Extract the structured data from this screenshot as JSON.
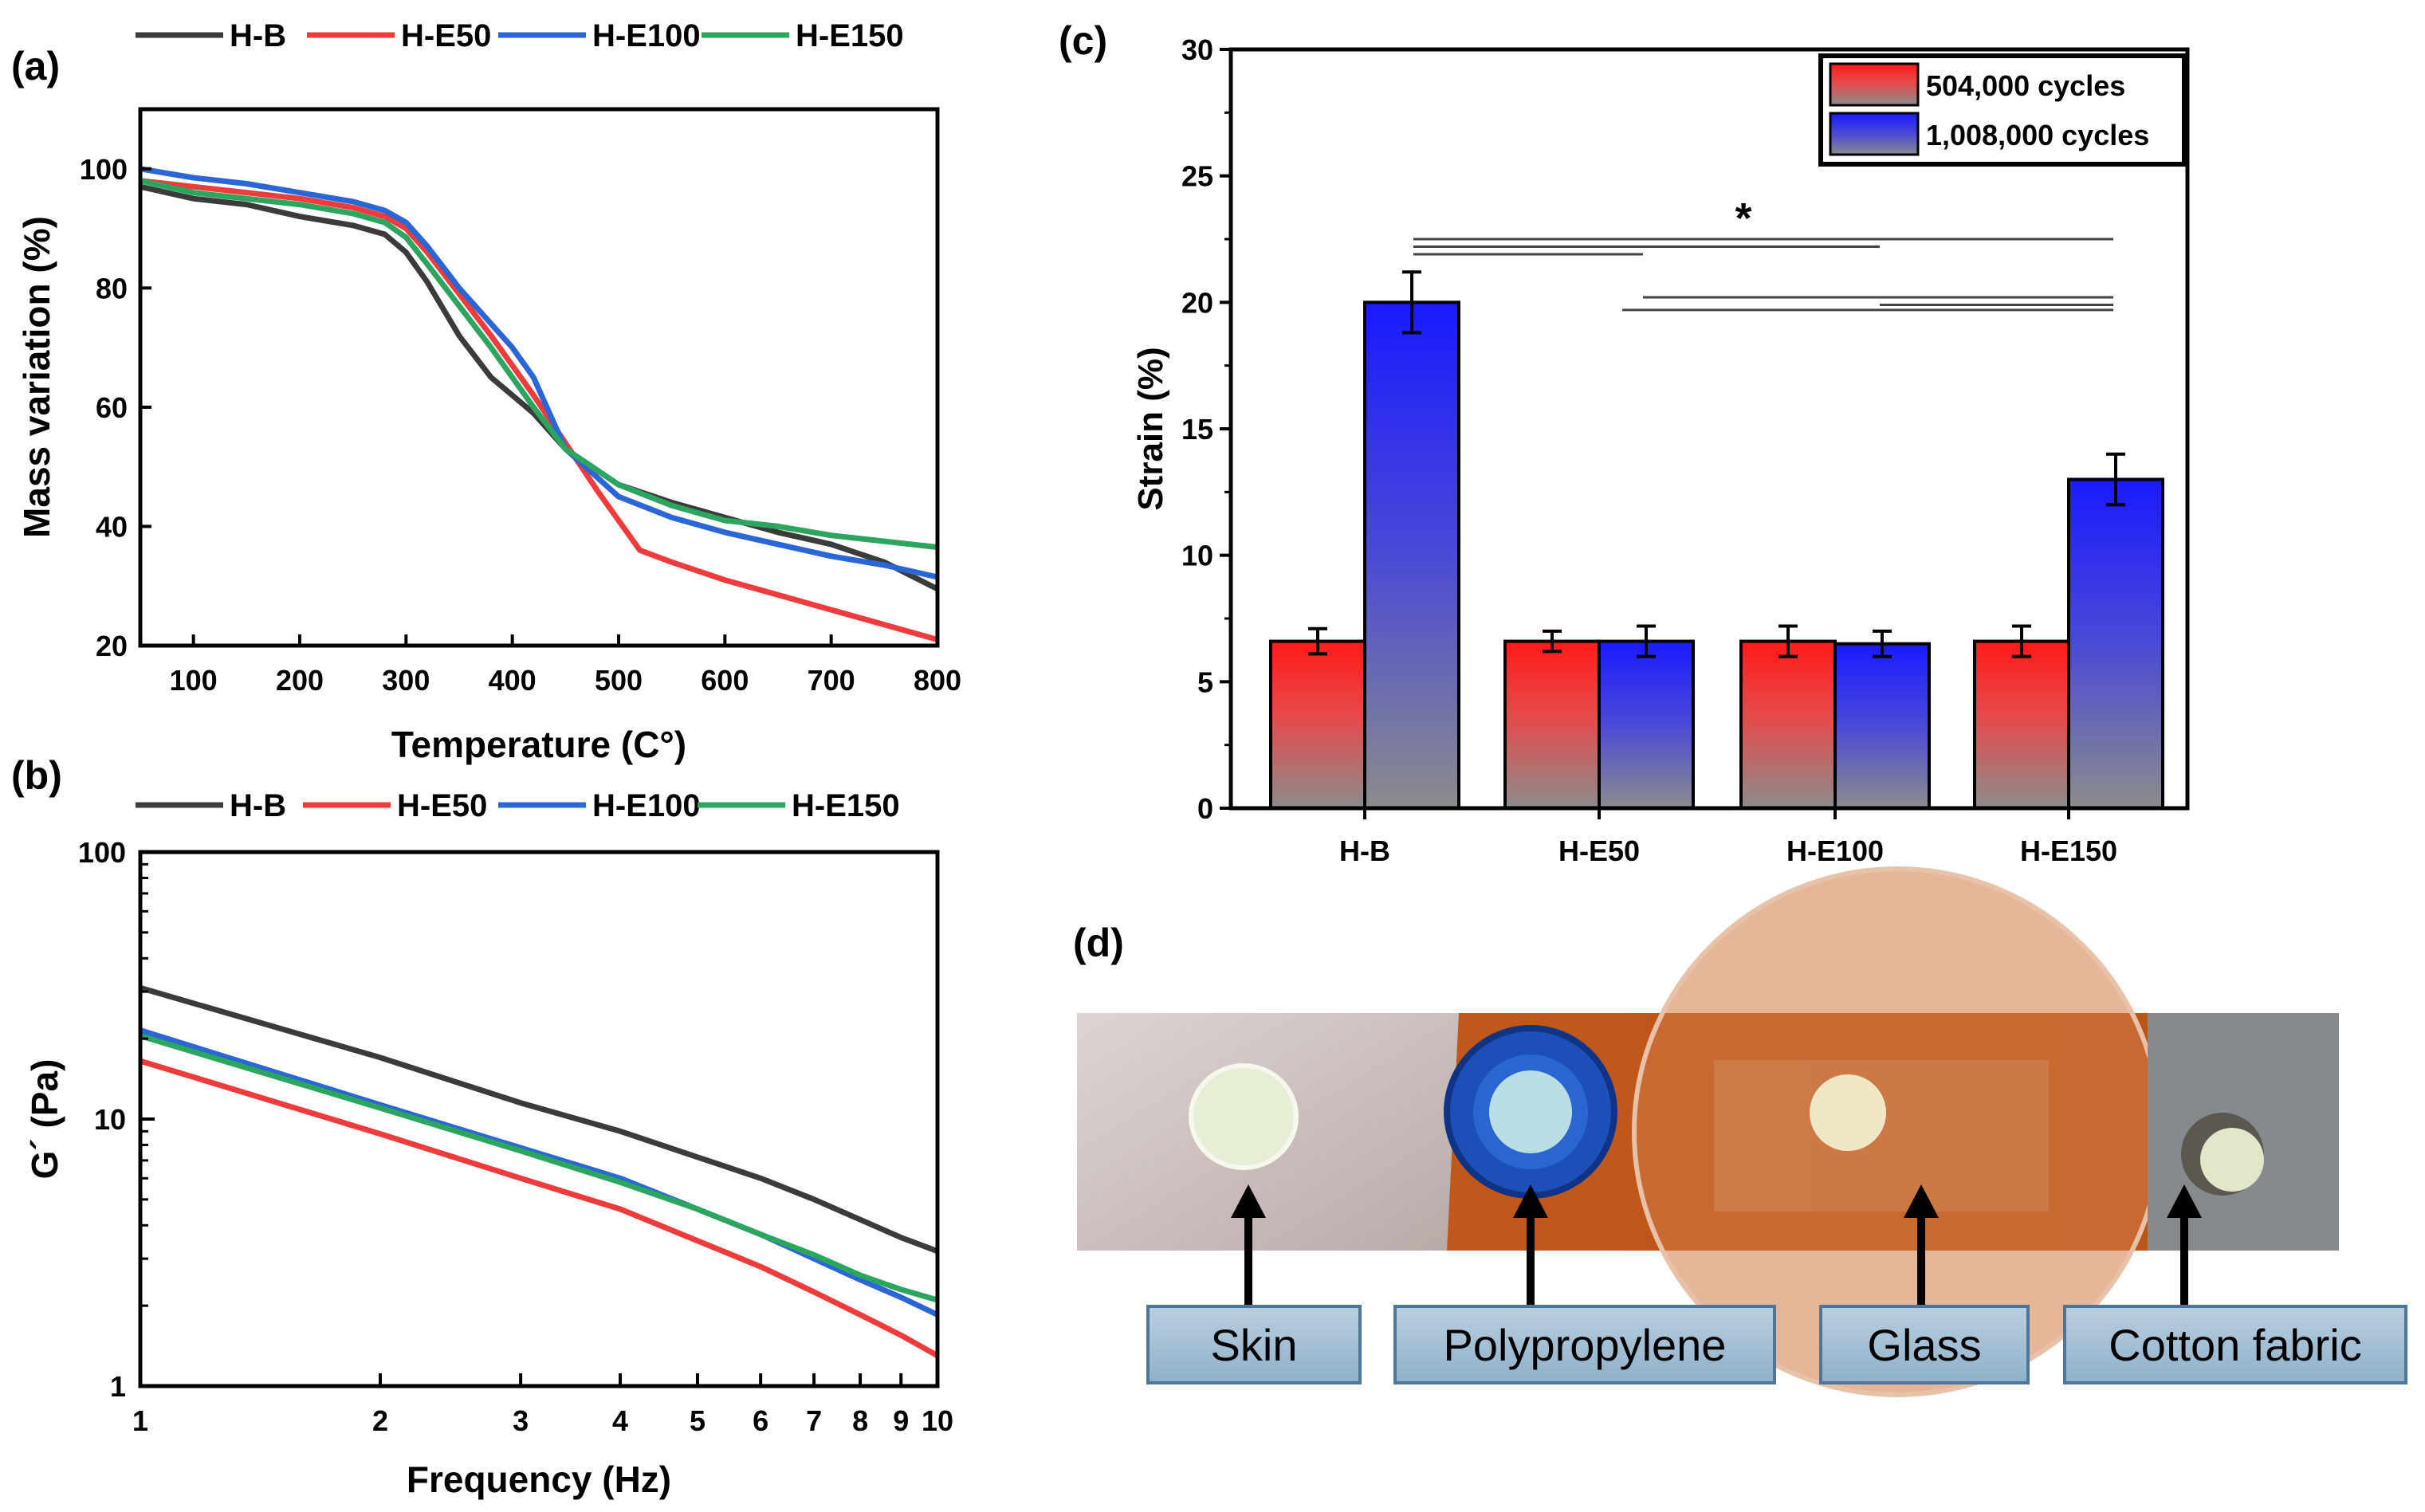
{
  "panels": {
    "a_label": "(a)",
    "b_label": "(b)",
    "c_label": "(c)",
    "d_label": "(d)"
  },
  "colors": {
    "H-B": "#3b3b3b",
    "H-E50": "#ee3b3b",
    "H-E100": "#2b66d6",
    "H-E150": "#2ca55e",
    "bar_red": "#ff1a1a",
    "bar_blue": "#1a1aff",
    "bar_gray": "#8c8c8c"
  },
  "chart_data": [
    {
      "id": "a",
      "type": "line",
      "xlabel": "Temperature (C°)",
      "ylabel": "Mass variation (%)",
      "xlim": [
        50,
        800
      ],
      "ylim": [
        20,
        110
      ],
      "xticks": [
        100,
        200,
        300,
        400,
        500,
        600,
        700,
        800
      ],
      "yticks": [
        20,
        40,
        60,
        80,
        100
      ],
      "legend": [
        "H-B",
        "H-E50",
        "H-E100",
        "H-E150"
      ],
      "series": [
        {
          "name": "H-B",
          "x": [
            50,
            100,
            150,
            200,
            250,
            280,
            300,
            320,
            350,
            380,
            400,
            420,
            450,
            500,
            550,
            600,
            650,
            700,
            750,
            800
          ],
          "y": [
            97,
            95,
            94,
            92,
            90.5,
            89,
            86,
            81,
            72,
            65,
            62,
            59,
            53,
            47,
            44,
            41.5,
            39,
            37,
            34,
            29.5
          ]
        },
        {
          "name": "H-E50",
          "x": [
            50,
            100,
            150,
            200,
            250,
            280,
            300,
            320,
            350,
            380,
            400,
            420,
            450,
            480,
            500,
            520,
            550,
            600,
            650,
            700,
            750,
            800
          ],
          "y": [
            98,
            97,
            96,
            95,
            93.5,
            92,
            90,
            86,
            79,
            72,
            67,
            62,
            54,
            46,
            41,
            36,
            34,
            31,
            28.5,
            26,
            23.5,
            21
          ]
        },
        {
          "name": "H-E100",
          "x": [
            50,
            100,
            150,
            200,
            250,
            280,
            300,
            320,
            350,
            380,
            400,
            420,
            450,
            500,
            550,
            600,
            650,
            700,
            750,
            800
          ],
          "y": [
            100,
            98.5,
            97.5,
            96,
            94.5,
            93,
            91,
            87,
            80,
            74,
            70,
            65,
            53,
            45,
            41.5,
            39,
            37,
            35,
            33.5,
            31.5
          ]
        },
        {
          "name": "H-E150",
          "x": [
            50,
            100,
            150,
            200,
            250,
            280,
            300,
            320,
            350,
            380,
            400,
            420,
            450,
            500,
            550,
            600,
            650,
            700,
            750,
            800
          ],
          "y": [
            98,
            96,
            95,
            94,
            92.5,
            91,
            88.5,
            84,
            77,
            70,
            65,
            60,
            53,
            47,
            43.5,
            41,
            40,
            38.5,
            37.5,
            36.5
          ]
        }
      ]
    },
    {
      "id": "b",
      "type": "line",
      "scale": "log-log",
      "xlabel": "Frequency (Hz)",
      "ylabel": "G´ (Pa)",
      "xlim": [
        1,
        10
      ],
      "ylim": [
        1,
        100
      ],
      "xticks": [
        1,
        2,
        3,
        4,
        5,
        6,
        7,
        8,
        9,
        10
      ],
      "yticks": [
        1,
        10,
        100
      ],
      "legend": [
        "H-B",
        "H-E50",
        "H-E100",
        "H-E150"
      ],
      "series": [
        {
          "name": "H-B",
          "x": [
            1,
            2,
            3,
            4,
            5,
            6,
            7,
            8,
            9,
            10
          ],
          "y": [
            31,
            17,
            11.5,
            9,
            7.2,
            6,
            5,
            4.2,
            3.6,
            3.2
          ]
        },
        {
          "name": "H-E50",
          "x": [
            1,
            2,
            3,
            4,
            5,
            6,
            7,
            8,
            9,
            10
          ],
          "y": [
            16.5,
            8.8,
            6,
            4.6,
            3.5,
            2.8,
            2.25,
            1.85,
            1.55,
            1.3
          ]
        },
        {
          "name": "H-E100",
          "x": [
            1,
            2,
            3,
            4,
            5,
            6,
            7,
            8,
            9,
            10
          ],
          "y": [
            21.5,
            11.3,
            7.8,
            6,
            4.6,
            3.7,
            3,
            2.5,
            2.15,
            1.85
          ]
        },
        {
          "name": "H-E150",
          "x": [
            1,
            2,
            3,
            4,
            5,
            6,
            7,
            8,
            9,
            10
          ],
          "y": [
            20.5,
            11,
            7.6,
            5.8,
            4.6,
            3.7,
            3.1,
            2.6,
            2.3,
            2.1
          ]
        }
      ]
    },
    {
      "id": "c",
      "type": "bar",
      "ylabel": "Strain (%)",
      "ylim": [
        0,
        30
      ],
      "yticks": [
        0,
        5,
        10,
        15,
        20,
        25,
        30
      ],
      "categories": [
        "H-B",
        "H-E50",
        "H-E100",
        "H-E150"
      ],
      "series": [
        {
          "name": "504,000 cycles",
          "values": [
            6.6,
            6.6,
            6.6,
            6.6
          ],
          "errors": [
            0.5,
            0.4,
            0.6,
            0.6
          ]
        },
        {
          "name": "1,008,000 cycles",
          "values": [
            20.0,
            6.6,
            6.5,
            13.0
          ],
          "errors": [
            1.2,
            0.6,
            0.5,
            1.0
          ]
        }
      ],
      "significance_mark": "*"
    }
  ],
  "photo_panel": {
    "labels": [
      "Skin",
      "Polypropylene",
      "Glass",
      "Cotton fabric"
    ]
  }
}
